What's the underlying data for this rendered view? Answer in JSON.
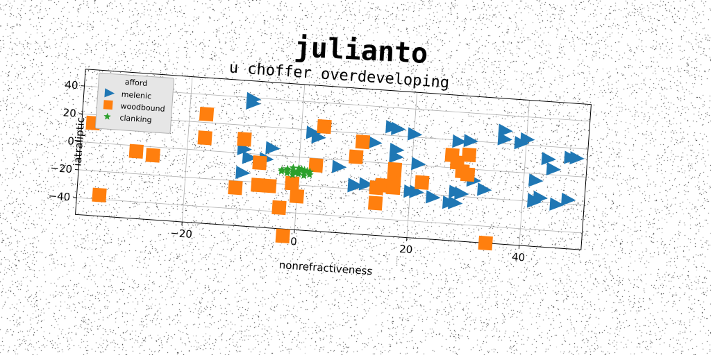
{
  "figure": {
    "title": "julianto"
  },
  "chart_data": {
    "type": "scatter",
    "title": "u choffer overdeveloping",
    "xlabel": "nonrefractiveness",
    "ylabel": "iatraliptic",
    "xlim": [
      -39,
      51
    ],
    "ylim": [
      -52,
      52
    ],
    "xticks": [
      -20,
      0,
      20,
      40
    ],
    "yticks": [
      -40,
      -20,
      0,
      20,
      40
    ],
    "xtick_labels": [
      "−20",
      "0",
      "20",
      "40"
    ],
    "ytick_labels": [
      "−40",
      "−20",
      "0",
      "20",
      "40"
    ],
    "grid": true,
    "legend": {
      "title": "afford",
      "placement": "top-left"
    },
    "series": [
      {
        "name": "melenic",
        "marker": "triangle-right",
        "color": "#1f77b4",
        "points": [
          [
            -9,
            39
          ],
          [
            -9,
            36
          ],
          [
            -10,
            3
          ],
          [
            -9,
            -3
          ],
          [
            -10,
            -14
          ],
          [
            -5,
            5
          ],
          [
            -6,
            -3
          ],
          [
            2,
            18
          ],
          [
            3,
            15
          ],
          [
            7,
            -5
          ],
          [
            10,
            -17
          ],
          [
            10,
            -18
          ],
          [
            12,
            -16
          ],
          [
            13,
            14
          ],
          [
            17,
            -16
          ],
          [
            16,
            26
          ],
          [
            17,
            25
          ],
          [
            20,
            22
          ],
          [
            17,
            5
          ],
          [
            17,
            10
          ],
          [
            21,
            1
          ],
          [
            20,
            -19
          ],
          [
            21,
            -19
          ],
          [
            24,
            -22
          ],
          [
            27,
            -25
          ],
          [
            28,
            -25
          ],
          [
            28,
            -17
          ],
          [
            29,
            -18
          ],
          [
            28,
            19
          ],
          [
            30,
            20
          ],
          [
            31,
            -8
          ],
          [
            33,
            -14
          ],
          [
            36,
            29
          ],
          [
            36,
            23
          ],
          [
            39,
            21
          ],
          [
            40,
            24
          ],
          [
            42,
            -19
          ],
          [
            43,
            -17
          ],
          [
            42,
            -5
          ],
          [
            44,
            11
          ],
          [
            45,
            4
          ],
          [
            46,
            -21
          ],
          [
            48,
            -17
          ],
          [
            48,
            13
          ],
          [
            49,
            13
          ],
          [
            42,
            -20
          ]
        ]
      },
      {
        "name": "woodbound",
        "marker": "square",
        "color": "#ff7f0e",
        "points": [
          [
            -37,
            14
          ],
          [
            -29,
            -4
          ],
          [
            -26,
            -6
          ],
          [
            -17,
            26
          ],
          [
            -17,
            9
          ],
          [
            -35,
            -37
          ],
          [
            -10,
            10
          ],
          [
            -11,
            -25
          ],
          [
            -7,
            -6
          ],
          [
            -7,
            -22
          ],
          [
            -5,
            -22
          ],
          [
            -3,
            -37
          ],
          [
            -2,
            -57
          ],
          [
            -1,
            -19
          ],
          [
            0,
            -28
          ],
          [
            3,
            -5
          ],
          [
            4,
            23
          ],
          [
            10,
            3
          ],
          [
            11,
            14
          ],
          [
            14,
            -29
          ],
          [
            14,
            -18
          ],
          [
            15,
            -16
          ],
          [
            17,
            -12
          ],
          [
            17,
            -17
          ],
          [
            17,
            -4
          ],
          [
            22,
            -12
          ],
          [
            27,
            9
          ],
          [
            28,
            4
          ],
          [
            29,
            -2
          ],
          [
            30,
            10
          ],
          [
            30,
            -4
          ],
          [
            34,
            -52
          ]
        ]
      },
      {
        "name": "clanking",
        "marker": "star",
        "color": "#2ca02c",
        "points": [
          [
            -3,
            -10
          ],
          [
            -2,
            -9
          ],
          [
            -1,
            -11
          ],
          [
            0,
            -10
          ],
          [
            1,
            -9
          ],
          [
            -2,
            -12
          ],
          [
            0,
            -12
          ],
          [
            1,
            -11
          ],
          [
            2,
            -10
          ],
          [
            -1,
            -8
          ],
          [
            0,
            -8
          ],
          [
            -3,
            -11
          ],
          [
            -1,
            -13
          ],
          [
            1,
            -13
          ],
          [
            2,
            -12
          ],
          [
            -2,
            -10
          ],
          [
            0,
            -10.5
          ],
          [
            1.5,
            -9.5
          ],
          [
            -0.5,
            -11.5
          ],
          [
            0.5,
            -8.5
          ]
        ]
      }
    ]
  }
}
